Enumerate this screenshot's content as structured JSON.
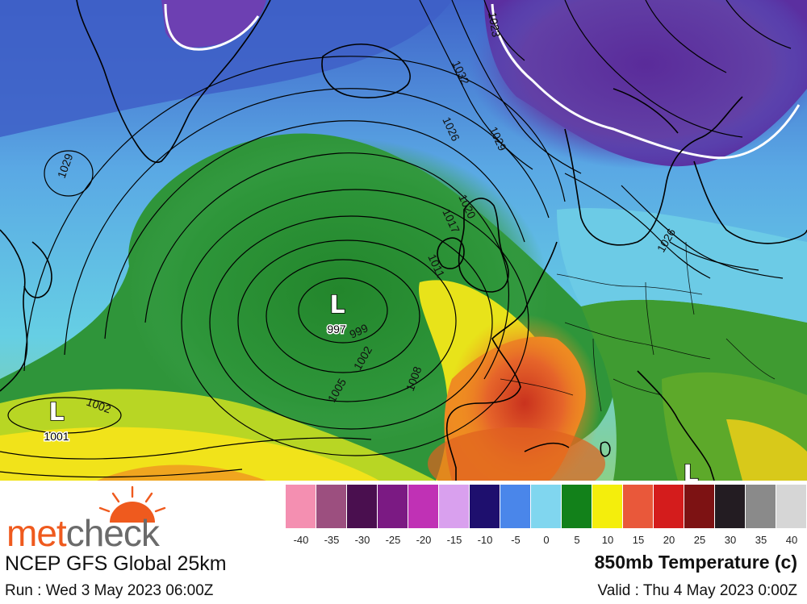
{
  "map": {
    "lows": [
      {
        "letter": "L",
        "value": "997"
      },
      {
        "letter": "L",
        "value": "1001"
      },
      {
        "letter": "L",
        "value": ""
      }
    ],
    "isobar_labels": [
      "1029",
      "1002",
      "1005",
      "1002",
      "999",
      "1008",
      "1011",
      "1017",
      "1020",
      "1026",
      "1029",
      "1032",
      "1026",
      "1023"
    ]
  },
  "branding": {
    "logo_part1": "met",
    "logo_part2": "check",
    "logo_colors": {
      "met": "#ef5a1e",
      "check": "#6b6b6b",
      "sun": "#ef5a1e"
    }
  },
  "footer": {
    "model_name": "NCEP GFS Global 25km",
    "run_time": "Run : Wed 3 May 2023 06:00Z",
    "field_title": "850mb Temperature (c)",
    "valid_time": "Valid : Thu 4 May 2023 0:00Z"
  },
  "scale": {
    "colors": [
      "#f48fb1",
      "#9c4f7f",
      "#4a0f4f",
      "#7b1a83",
      "#c031b5",
      "#d9a0ee",
      "#1e0f6e",
      "#4a86ea",
      "#80d6ef",
      "#12811a",
      "#f4ee0c",
      "#e9583a",
      "#d41c1c",
      "#7d1213",
      "#231c22",
      "#8a8a8a",
      "#d6d6d6"
    ],
    "ticks": [
      "-40",
      "-35",
      "-30",
      "-25",
      "-20",
      "-15",
      "-10",
      "-5",
      "0",
      "5",
      "10",
      "15",
      "20",
      "25",
      "30",
      "35",
      "40"
    ]
  }
}
